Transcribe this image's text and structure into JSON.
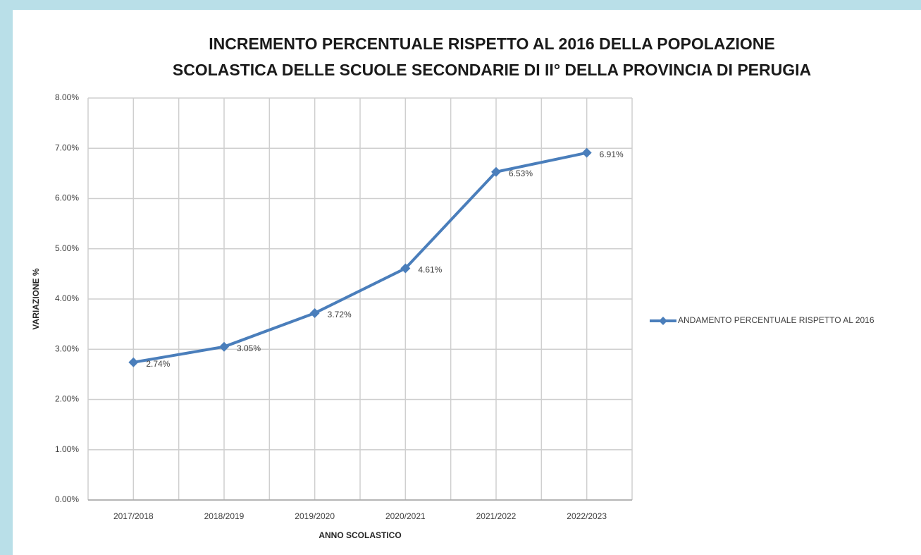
{
  "chart_data": {
    "type": "line",
    "title": [
      "INCREMENTO PERCENTUALE RISPETTO AL 2016 DELLA POPOLAZIONE",
      "SCOLASTICA DELLE SCUOLE SECONDARIE DI II° DELLA PROVINCIA DI PERUGIA"
    ],
    "x_label": "ANNO SCOLASTICO",
    "y_label": "VARIAZIONE %",
    "categories": [
      "2017/2018",
      "2018/2019",
      "2019/2020",
      "2020/2021",
      "2021/2022",
      "2022/2023"
    ],
    "series": [
      {
        "name": "ANDAMENTO PERCENTUALE RISPETTO AL 2016",
        "color": "#4a7ebb",
        "values": [
          2.74,
          3.05,
          3.72,
          4.61,
          6.53,
          6.91
        ],
        "value_labels": [
          "2.74%",
          "3.05%",
          "3.72%",
          "4.61%",
          "6.53%",
          "6.91%"
        ]
      }
    ],
    "ylim": [
      0,
      8
    ],
    "yticks": [
      {
        "value": 0,
        "label": "0.00%"
      },
      {
        "value": 1,
        "label": "1.00%"
      },
      {
        "value": 2,
        "label": "2.00%"
      },
      {
        "value": 3,
        "label": "3.00%"
      },
      {
        "value": 4,
        "label": "4.00%"
      },
      {
        "value": 5,
        "label": "5.00%"
      },
      {
        "value": 6,
        "label": "6.00%"
      },
      {
        "value": 7,
        "label": "7.00%"
      },
      {
        "value": 8,
        "label": "8.00%"
      }
    ],
    "grid": true,
    "legend": "right"
  }
}
